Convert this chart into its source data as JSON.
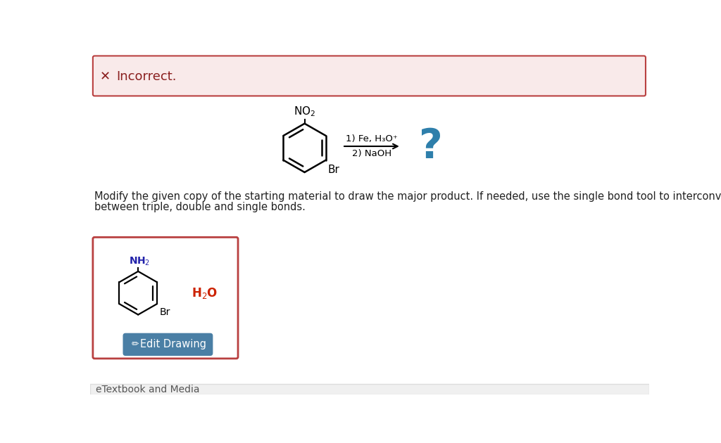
{
  "incorrect_banner_bg": "#f9eaea",
  "incorrect_banner_border": "#b94040",
  "incorrect_text": "Incorrect.",
  "incorrect_text_color": "#8b2020",
  "page_bg": "#ffffff",
  "instruction_color": "#222222",
  "question_mark_color": "#2e7fab",
  "drawing_box_bg": "#ffffff",
  "drawing_box_border": "#b94040",
  "nh2_color": "#2222aa",
  "h2o_color": "#cc2200",
  "edit_btn_bg": "#4a7fa5",
  "edit_btn_text": "Edit Drawing",
  "edit_btn_text_color": "#ffffff",
  "bottom_bar_bg": "#f0f0f0",
  "bottom_bar_text": "eTextbook and Media",
  "bottom_bar_text_color": "#555555"
}
